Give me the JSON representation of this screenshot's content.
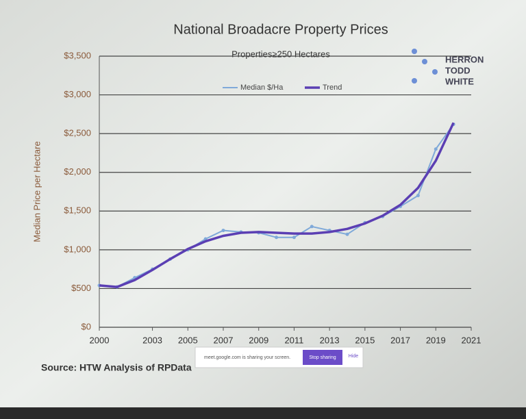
{
  "chart_data": {
    "type": "line",
    "title": "National Broadacre Property Prices",
    "subtitle": "Properties≥250 Hectares",
    "y_label": "Median Price per Hectare",
    "x": [
      2000,
      2001,
      2002,
      2003,
      2004,
      2005,
      2006,
      2007,
      2008,
      2009,
      2010,
      2011,
      2012,
      2013,
      2014,
      2015,
      2016,
      2017,
      2018,
      2019,
      2020
    ],
    "series": [
      {
        "name": "Median $/Ha",
        "color": "#7fa9d9",
        "values": [
          540,
          520,
          640,
          750,
          880,
          1000,
          1140,
          1250,
          1230,
          1220,
          1160,
          1160,
          1300,
          1250,
          1200,
          1350,
          1430,
          1560,
          1700,
          2300,
          2620
        ]
      },
      {
        "name": "Trend",
        "color": "#5b3fb3",
        "values": [
          540,
          520,
          610,
          740,
          880,
          1010,
          1110,
          1180,
          1220,
          1230,
          1220,
          1210,
          1210,
          1230,
          1270,
          1340,
          1440,
          1580,
          1800,
          2150,
          2640
        ]
      }
    ],
    "xlim": [
      2000,
      2021
    ],
    "xticks": [
      2000,
      2003,
      2005,
      2007,
      2009,
      2011,
      2013,
      2015,
      2017,
      2019,
      2021
    ],
    "ylim": [
      0,
      3500
    ],
    "yticks": [
      {
        "value": 0,
        "label": "$0"
      },
      {
        "value": 500,
        "label": "$500"
      },
      {
        "value": 1000,
        "label": "$1,000"
      },
      {
        "value": 1500,
        "label": "$1,500"
      },
      {
        "value": 2000,
        "label": "$2,000"
      },
      {
        "value": 2500,
        "label": "$2,500"
      },
      {
        "value": 3000,
        "label": "$3,000"
      },
      {
        "value": 3500,
        "label": "$3,500"
      }
    ],
    "grid": true,
    "legend": "top"
  },
  "logo": {
    "lines": [
      "HERRON",
      "TODD",
      "WHITE"
    ]
  },
  "source": "Source: HTW Analysis of RPData",
  "share_bar": {
    "message": "meet.google.com is sharing your screen.",
    "stop": "Stop sharing",
    "hide": "Hide"
  }
}
